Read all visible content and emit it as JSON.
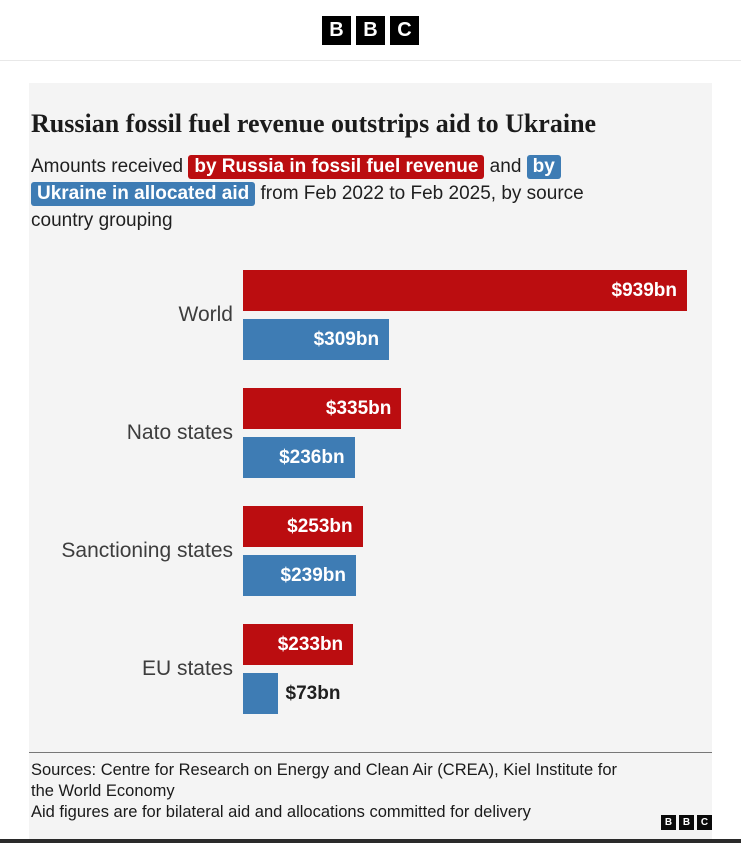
{
  "header": {
    "logo_letters": [
      "B",
      "B",
      "C"
    ]
  },
  "article": {
    "title": "Russian fossil fuel revenue outstrips aid to Ukraine",
    "subtitle_segments": [
      {
        "text": "Amounts received ",
        "style": "plain"
      },
      {
        "text": "by Russia in fossil fuel revenue",
        "style": "red-highlight"
      },
      {
        "text": " and ",
        "style": "plain"
      },
      {
        "text": "by",
        "style": "blue-highlight"
      },
      {
        "break": true
      },
      {
        "text": "Ukraine in allocated aid",
        "style": "blue-highlight"
      },
      {
        "text": " from Feb 2022 to Feb 2025, by source",
        "style": "plain"
      },
      {
        "break": true
      },
      {
        "text": "country grouping",
        "style": "plain"
      }
    ]
  },
  "chart_data": {
    "type": "bar",
    "orientation": "horizontal",
    "title": "Russian fossil fuel revenue outstrips aid to Ukraine",
    "subtitle": "Amounts received by Russia in fossil fuel revenue and by Ukraine in allocated aid from Feb 2022 to Feb 2025, by source country grouping",
    "categories": [
      "World",
      "Nato states",
      "Sanctioning states",
      "EU states"
    ],
    "series": [
      {
        "name": "Russia fossil fuel revenue",
        "color": "#bb0d10",
        "values": [
          939,
          335,
          253,
          233
        ],
        "labels": [
          "$939bn",
          "$335bn",
          "$253bn",
          "$233bn"
        ]
      },
      {
        "name": "Ukraine allocated aid",
        "color": "#3e7cb4",
        "values": [
          309,
          236,
          239,
          73
        ],
        "labels": [
          "$309bn",
          "$236bn",
          "$239bn",
          "$73bn"
        ]
      }
    ],
    "xlim": [
      0,
      939
    ],
    "value_unit": "$bn",
    "grid": false,
    "legend_position": "inline-subtitle-highlights"
  },
  "footer": {
    "sources_lines": [
      "Sources: Centre for Research on Energy and Clean Air (CREA), Kiel Institute for",
      "the World Economy"
    ],
    "footnote_partial": "Aid figures are for bilateral aid and allocations committed for delivery",
    "logo_letters": [
      "B",
      "B",
      "C"
    ]
  },
  "colors": {
    "russia_red": "#bb0d10",
    "ukraine_blue": "#3e7cb4",
    "card_background": "#f4f4f4",
    "text_dark": "#1a1a1a"
  }
}
